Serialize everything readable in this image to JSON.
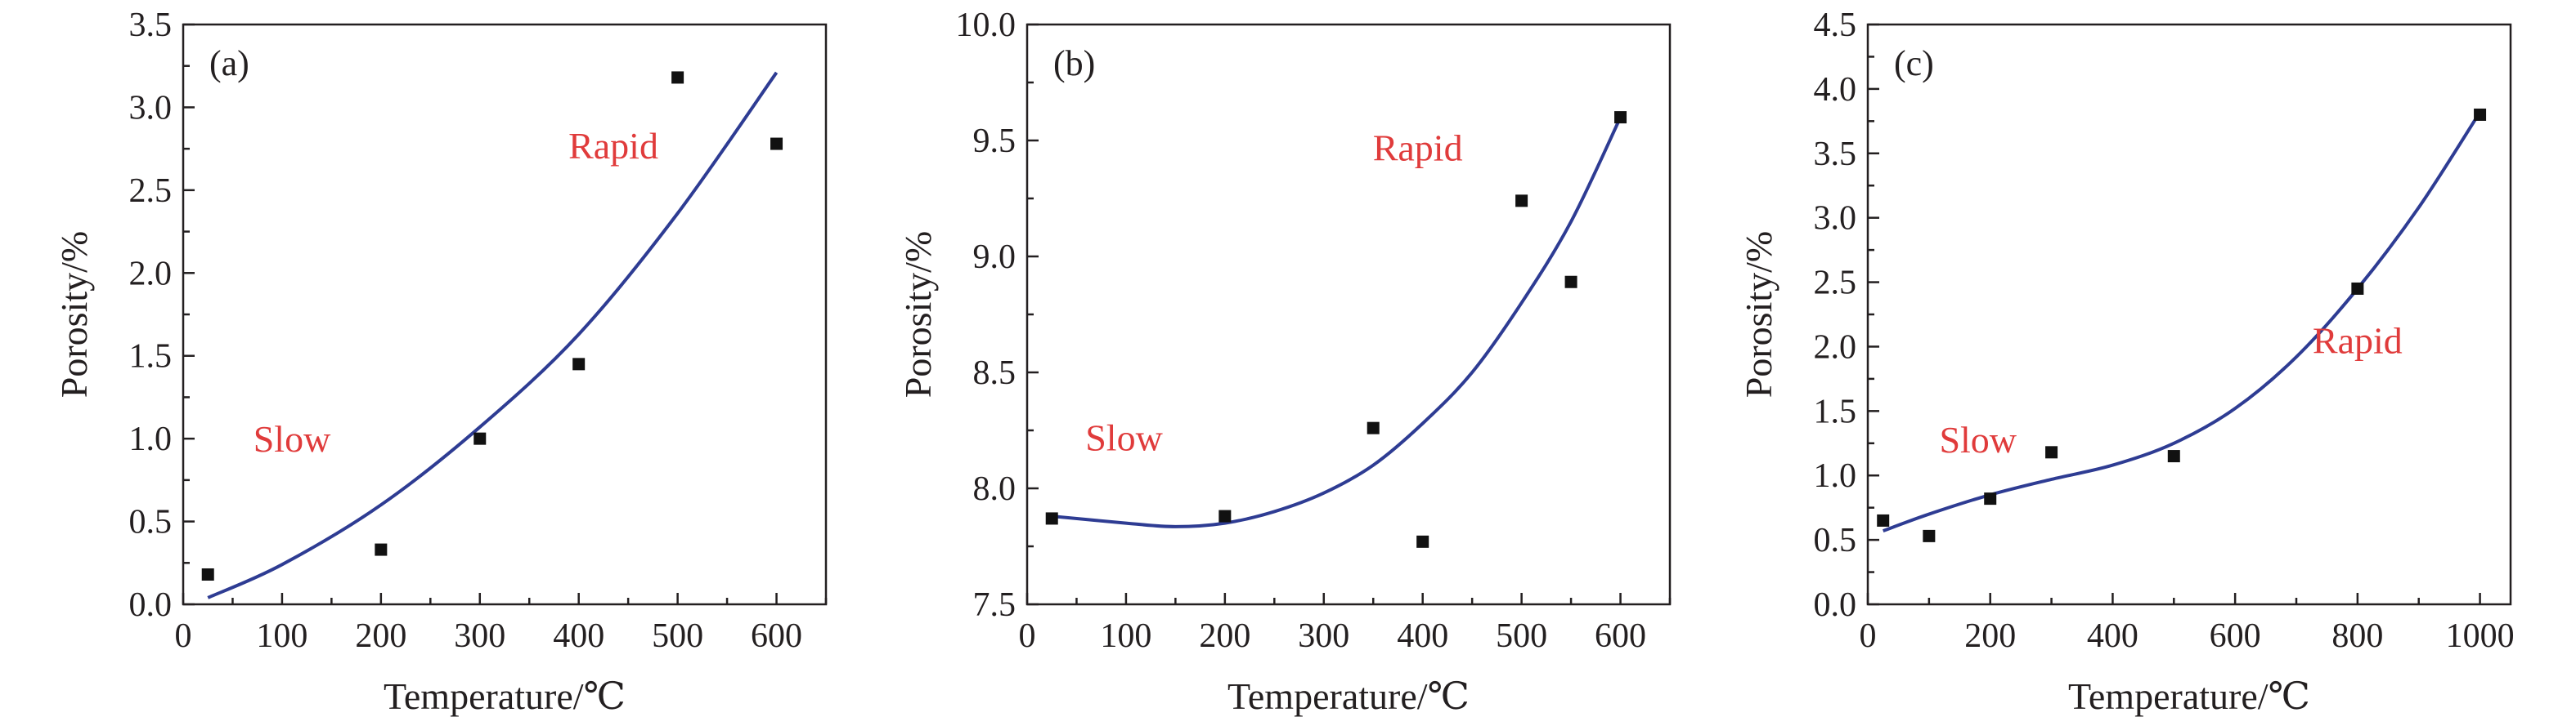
{
  "chart_data": [
    {
      "type": "scatter",
      "panel_tag": "(a)",
      "xlabel": "Temperature/℃",
      "ylabel": "Porosity/%",
      "xlim": [
        0,
        650
      ],
      "ylim": [
        0,
        3.5
      ],
      "x_ticks": [
        0,
        100,
        200,
        300,
        400,
        500,
        600
      ],
      "y_ticks": [
        0.0,
        0.5,
        1.0,
        1.5,
        2.0,
        2.5,
        3.0,
        3.5
      ],
      "y_tick_labels": [
        "0.0",
        "0.5",
        "1.0",
        "1.5",
        "2.0",
        "2.5",
        "3.0",
        "3.5"
      ],
      "x_tick_labels": [
        "0",
        "100",
        "200",
        "300",
        "400",
        "500",
        "600"
      ],
      "points": [
        {
          "x": 25,
          "y": 0.18
        },
        {
          "x": 200,
          "y": 0.33
        },
        {
          "x": 300,
          "y": 1.0
        },
        {
          "x": 400,
          "y": 1.45
        },
        {
          "x": 500,
          "y": 3.18
        },
        {
          "x": 600,
          "y": 2.78
        }
      ],
      "fit_curve": [
        {
          "x": 25,
          "y": 0.04
        },
        {
          "x": 100,
          "y": 0.24
        },
        {
          "x": 200,
          "y": 0.6
        },
        {
          "x": 300,
          "y": 1.07
        },
        {
          "x": 400,
          "y": 1.63
        },
        {
          "x": 500,
          "y": 2.36
        },
        {
          "x": 600,
          "y": 3.21
        }
      ],
      "annotations": [
        {
          "text": "Slow",
          "x": 110,
          "y": 1.0
        },
        {
          "text": "Rapid",
          "x": 435,
          "y": 2.77
        }
      ]
    },
    {
      "type": "scatter",
      "panel_tag": "(b)",
      "xlabel": "Temperature/℃",
      "ylabel": "Porosity/%",
      "xlim": [
        0,
        650
      ],
      "ylim": [
        7.5,
        10.0
      ],
      "x_ticks": [
        0,
        100,
        200,
        300,
        400,
        500,
        600
      ],
      "y_ticks": [
        7.5,
        8.0,
        8.5,
        9.0,
        9.5,
        10.0
      ],
      "y_tick_labels": [
        "7.5",
        "8.0",
        "8.5",
        "9.0",
        "9.5",
        "10.0"
      ],
      "x_tick_labels": [
        "0",
        "100",
        "200",
        "300",
        "400",
        "500",
        "600"
      ],
      "points": [
        {
          "x": 25,
          "y": 7.87
        },
        {
          "x": 200,
          "y": 7.88
        },
        {
          "x": 350,
          "y": 8.26
        },
        {
          "x": 400,
          "y": 7.77
        },
        {
          "x": 500,
          "y": 9.24
        },
        {
          "x": 550,
          "y": 8.89
        },
        {
          "x": 600,
          "y": 9.6
        }
      ],
      "fit_curve": [
        {
          "x": 25,
          "y": 7.88
        },
        {
          "x": 100,
          "y": 7.85
        },
        {
          "x": 150,
          "y": 7.835
        },
        {
          "x": 200,
          "y": 7.85
        },
        {
          "x": 250,
          "y": 7.9
        },
        {
          "x": 300,
          "y": 7.98
        },
        {
          "x": 350,
          "y": 8.1
        },
        {
          "x": 400,
          "y": 8.28
        },
        {
          "x": 450,
          "y": 8.5
        },
        {
          "x": 500,
          "y": 8.8
        },
        {
          "x": 550,
          "y": 9.15
        },
        {
          "x": 600,
          "y": 9.6
        }
      ],
      "annotations": [
        {
          "text": "Slow",
          "x": 98,
          "y": 8.22
        },
        {
          "text": "Rapid",
          "x": 395,
          "y": 9.47
        }
      ]
    },
    {
      "type": "scatter",
      "panel_tag": "(c)",
      "xlabel": "Temperature/℃",
      "ylabel": "Porosity/%",
      "xlim": [
        0,
        1050
      ],
      "ylim": [
        0,
        4.5
      ],
      "x_ticks": [
        0,
        200,
        400,
        600,
        800,
        1000
      ],
      "y_ticks": [
        0.0,
        0.5,
        1.0,
        1.5,
        2.0,
        2.5,
        3.0,
        3.5,
        4.0,
        4.5
      ],
      "y_tick_labels": [
        "0.0",
        "0.5",
        "1.0",
        "1.5",
        "2.0",
        "2.5",
        "3.0",
        "3.5",
        "4.0",
        "4.5"
      ],
      "x_tick_labels": [
        "0",
        "200",
        "400",
        "600",
        "800",
        "1000"
      ],
      "points": [
        {
          "x": 25,
          "y": 0.65
        },
        {
          "x": 100,
          "y": 0.53
        },
        {
          "x": 200,
          "y": 0.82
        },
        {
          "x": 300,
          "y": 1.18
        },
        {
          "x": 500,
          "y": 1.15
        },
        {
          "x": 800,
          "y": 2.45
        },
        {
          "x": 1000,
          "y": 3.8
        }
      ],
      "fit_curve": [
        {
          "x": 25,
          "y": 0.57
        },
        {
          "x": 100,
          "y": 0.7
        },
        {
          "x": 200,
          "y": 0.85
        },
        {
          "x": 300,
          "y": 0.97
        },
        {
          "x": 400,
          "y": 1.08
        },
        {
          "x": 500,
          "y": 1.25
        },
        {
          "x": 600,
          "y": 1.52
        },
        {
          "x": 700,
          "y": 1.92
        },
        {
          "x": 800,
          "y": 2.45
        },
        {
          "x": 900,
          "y": 3.08
        },
        {
          "x": 1000,
          "y": 3.82
        }
      ],
      "annotations": [
        {
          "text": "Slow",
          "x": 180,
          "y": 1.28
        },
        {
          "text": "Rapid",
          "x": 800,
          "y": 2.05
        }
      ]
    }
  ]
}
